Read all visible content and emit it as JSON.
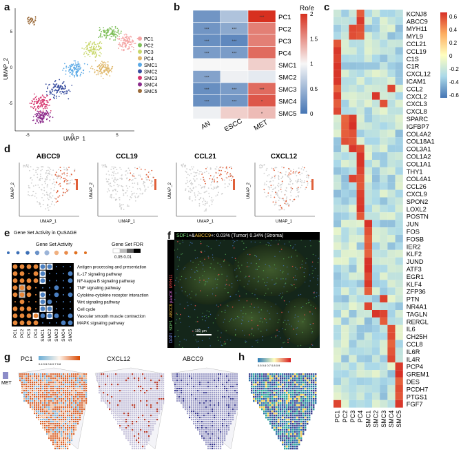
{
  "panel_letters": {
    "a": "a",
    "b": "b",
    "c": "c",
    "d": "d",
    "e": "e",
    "f": "f",
    "g": "g",
    "h": "h"
  },
  "clusters": [
    "PC1",
    "PC2",
    "PC3",
    "PC4",
    "SMC1",
    "SMC2",
    "SMC3",
    "SMC4",
    "SMC5"
  ],
  "colors": {
    "PC1": "#f4a4a4",
    "PC2": "#7fbf5a",
    "PC3": "#c8d76a",
    "PC4": "#e0b86c",
    "SMC1": "#5aa9e6",
    "SMC2": "#3a4fa0",
    "SMC3": "#d6336c",
    "SMC4": "#8c2c8c",
    "SMC5": "#9b6b3a"
  },
  "panel_a": {
    "xlabel": "UMAP_1",
    "ylabel": "UMAP_2",
    "xticks": [
      "-5",
      "0",
      "5"
    ],
    "yticks": [
      "5",
      "0",
      "-5"
    ]
  },
  "chart_data": [
    {
      "type": "heatmap",
      "title": "",
      "legend_title": "Ro/e",
      "rows": [
        "PC1",
        "PC2",
        "PC3",
        "PC4",
        "SMC1",
        "SMC2",
        "SMC3",
        "SMC4",
        "SMC5"
      ],
      "columns": [
        "AN",
        "ESCC",
        "MET"
      ],
      "values": [
        [
          0.25,
          0.6,
          2.0
        ],
        [
          0.25,
          0.4,
          1.6
        ],
        [
          0.2,
          0.15,
          1.6
        ],
        [
          0.3,
          0.3,
          1.7
        ],
        [
          1.0,
          1.0,
          1.2
        ],
        [
          0.35,
          0.95,
          0.9
        ],
        [
          0.2,
          0.3,
          1.7
        ],
        [
          0.2,
          0.25,
          1.8
        ],
        [
          0.95,
          1.2,
          1.3
        ]
      ],
      "stars": [
        [
          "",
          "",
          "***"
        ],
        [
          "***",
          "***",
          ""
        ],
        [
          "***",
          "***",
          ""
        ],
        [
          "***",
          "***",
          ""
        ],
        [
          "",
          "",
          ""
        ],
        [
          "***",
          "",
          ""
        ],
        [
          "***",
          "***",
          "***"
        ],
        [
          "***",
          "***",
          "*"
        ],
        [
          "",
          "",
          "*"
        ]
      ],
      "scale_ticks": [
        "2",
        "1.5",
        "1",
        "0.5",
        "0"
      ],
      "range": [
        0,
        2
      ]
    },
    {
      "type": "heatmap",
      "title": "",
      "rows": [
        "KCNJ8",
        "ABCC9",
        "MYH11",
        "MYL9",
        "CCL21",
        "CCL19",
        "C1S",
        "C1R",
        "CXCL12",
        "ICAM1",
        "CCL2",
        "CXCL2",
        "CXCL3",
        "CXCL8",
        "SPARC",
        "IGFBP7",
        "COL4A2",
        "COL18A1",
        "COL3A1",
        "COL1A2",
        "COL1A1",
        "THY1",
        "COL4A1",
        "CCL26",
        "CXCL9",
        "SPON2",
        "LOXL2",
        "POSTN",
        "JUN",
        "FOS",
        "FOSB",
        "IER2",
        "KLF2",
        "JUND",
        "ATF3",
        "EGR1",
        "KLF4",
        "ZFP36",
        "PTN",
        "NR4A1",
        "TAGLN",
        "RERGL",
        "IL6",
        "CH25H",
        "CCL8",
        "IL6R",
        "IL4R",
        "PCP4",
        "GREM1",
        "DES",
        "PCDH7",
        "PTGS1",
        "FGF7"
      ],
      "columns": [
        "PC1",
        "PC2",
        "PC3",
        "PC4",
        "SMC1",
        "SMC2",
        "SMC3",
        "SMC4",
        "SMC5"
      ],
      "scale_ticks": [
        "0.6",
        "0.4",
        "0.2",
        "0",
        "-0.2",
        "-0.4",
        "-0.6"
      ],
      "range": [
        -0.7,
        0.7
      ]
    }
  ],
  "panel_d": {
    "genes": [
      "ABCC9",
      "CCL19",
      "CCL21",
      "CXCL12"
    ],
    "xlabel": "UMAP_1",
    "ylabel": "UMAP_2"
  },
  "panel_e": {
    "title": "Gene Set Activity in QuSAGE",
    "activity_label": "Gene Set Activity",
    "fdr_label": "Gene Set FDR",
    "fdr_ticks": "0.05 0.01",
    "pathways": [
      "Antigen processing and presentation",
      "IL-17 signaling pathway",
      "NF-kappa B signaling pathway",
      "TNF signaling pathway",
      "Cytokine-cytokine receptor interaction",
      "Wnt signaling pathway",
      "Cell cycle",
      "Vascular smooth muscle contraction",
      "MAPK signaling pathway"
    ]
  },
  "panel_f": {
    "header_prefix": "SDF1",
    "header_mid": "+&",
    "header_gene": "ABCC9",
    "header_rest": "+: 0.03% (Tumor) 0.34% (Stroma)",
    "side_labels": [
      "DAPI",
      "SDF1",
      "ABCC9",
      "panCK",
      "MYH11"
    ],
    "scale": "100 μm"
  },
  "panel_g": {
    "titles": [
      "PC1",
      "CXCL12",
      "ABCC9"
    ],
    "side_label": "MET",
    "scale_ticks": "0.4 0.5 0.6 0.7 0.8"
  },
  "panel_h": {
    "scale_ticks": "0.5 0.6 0.7 0.8 0.9"
  }
}
